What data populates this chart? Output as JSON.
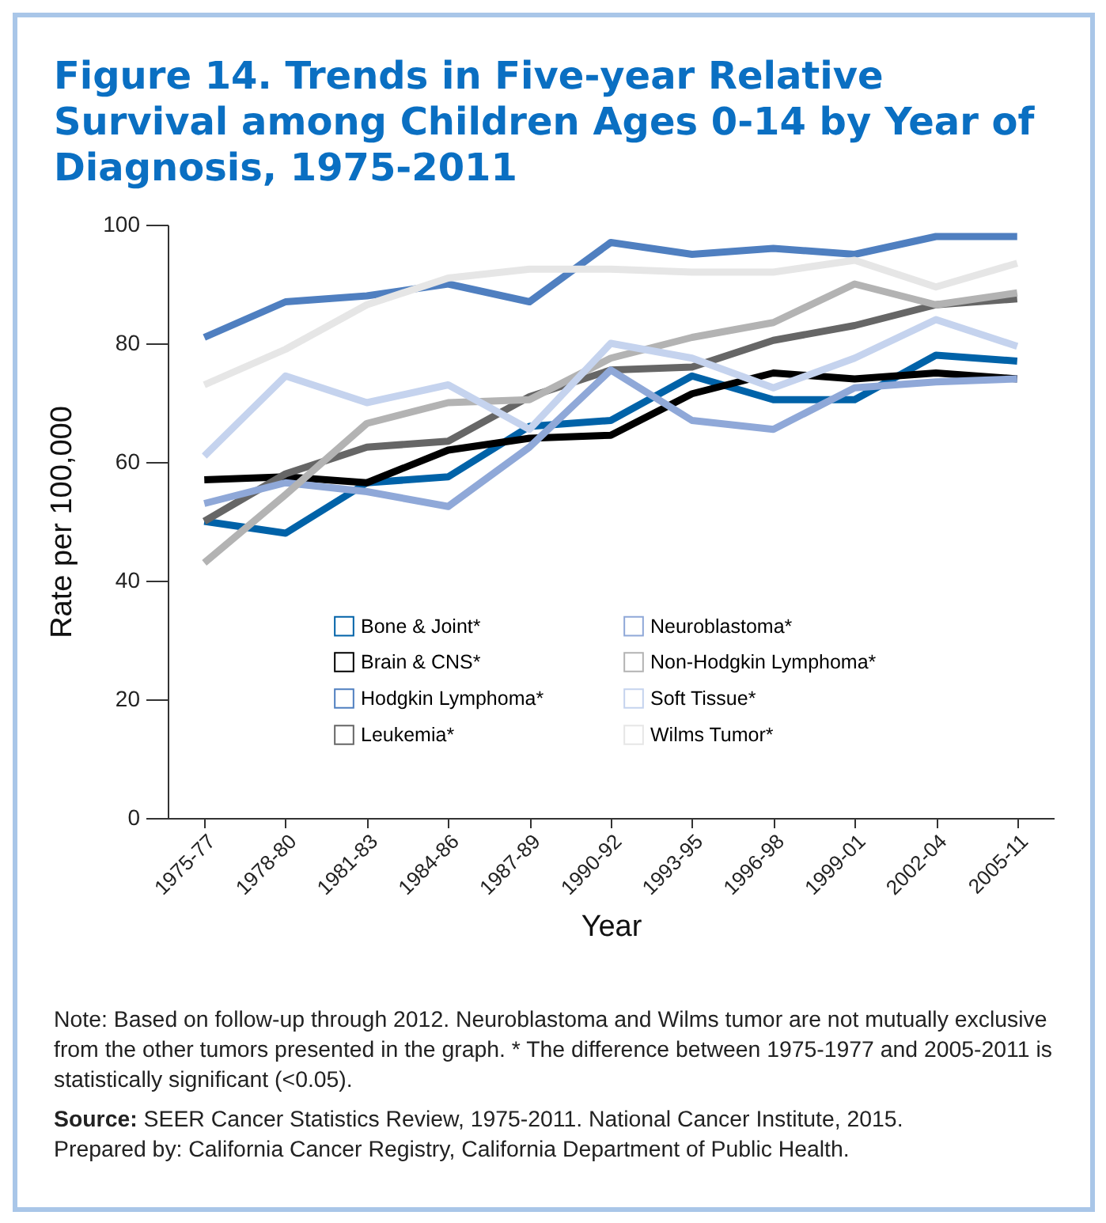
{
  "chart_data": {
    "type": "line",
    "title": "Figure 14. Trends in Five-year Relative Survival among Children Ages 0-14 by Year of Diagnosis, 1975-2011",
    "xlabel": "Year",
    "ylabel": "Rate per 100,000",
    "categories": [
      "1975-77",
      "1978-80",
      "1981-83",
      "1984-86",
      "1987-89",
      "1990-92",
      "1993-95",
      "1996-98",
      "1999-01",
      "2002-04",
      "2005-11"
    ],
    "series": [
      {
        "name": "Bone & Joint*",
        "color": "#0062a8",
        "values": [
          50,
          48,
          56.5,
          57.5,
          66,
          67,
          74.5,
          70.5,
          70.5,
          78,
          77
        ]
      },
      {
        "name": "Brain & CNS*",
        "color": "#000000",
        "values": [
          57,
          57.5,
          56.5,
          62,
          64,
          64.5,
          71.5,
          75,
          74,
          75,
          74
        ]
      },
      {
        "name": "Hodgkin Lymphoma*",
        "color": "#4f7fc0",
        "values": [
          81,
          87,
          88,
          90,
          87,
          97,
          95,
          96,
          95,
          98,
          98
        ]
      },
      {
        "name": "Leukemia*",
        "color": "#666666",
        "values": [
          50,
          58,
          62.5,
          63.5,
          71,
          75.5,
          76,
          80.5,
          83,
          86.5,
          87.5
        ]
      },
      {
        "name": "Neuroblastoma*",
        "color": "#8fa8d8",
        "values": [
          53,
          56.5,
          55,
          52.5,
          62.5,
          75.5,
          67,
          65.5,
          72.5,
          73.5,
          74
        ]
      },
      {
        "name": "Non-Hodgkin Lymphoma*",
        "color": "#b3b3b3",
        "values": [
          43,
          54.5,
          66.5,
          70,
          70.5,
          77.5,
          81,
          83.5,
          90,
          86.5,
          88.5
        ]
      },
      {
        "name": "Soft Tissue*",
        "color": "#c5d3ee",
        "values": [
          61,
          74.5,
          70,
          73,
          65.5,
          80,
          77.5,
          72.5,
          77.5,
          84,
          79.5
        ]
      },
      {
        "name": "Wilms Tumor*",
        "color": "#e6e6e6",
        "values": [
          73,
          79,
          86.5,
          91,
          92.5,
          92.5,
          92,
          92,
          94,
          89.5,
          93.5
        ]
      }
    ],
    "ylim": [
      0,
      100
    ],
    "yticks": [
      0,
      20,
      40,
      60,
      80,
      100
    ],
    "grid": false,
    "legend": "bottom",
    "annotations": [
      "Note: Based on follow-up through 2012. Neuroblastoma and Wilms tumor are not mutually exclusive from the other tumors presented in the graph. * The difference between 1975-1977 and 2005-2011 is statistically significant (<0.05).",
      "Source: SEER Cancer Statistics Review, 1975-2011. National Cancer Institute, 2015.",
      "Prepared by: California Cancer Registry, California Department of Public Health."
    ]
  }
}
